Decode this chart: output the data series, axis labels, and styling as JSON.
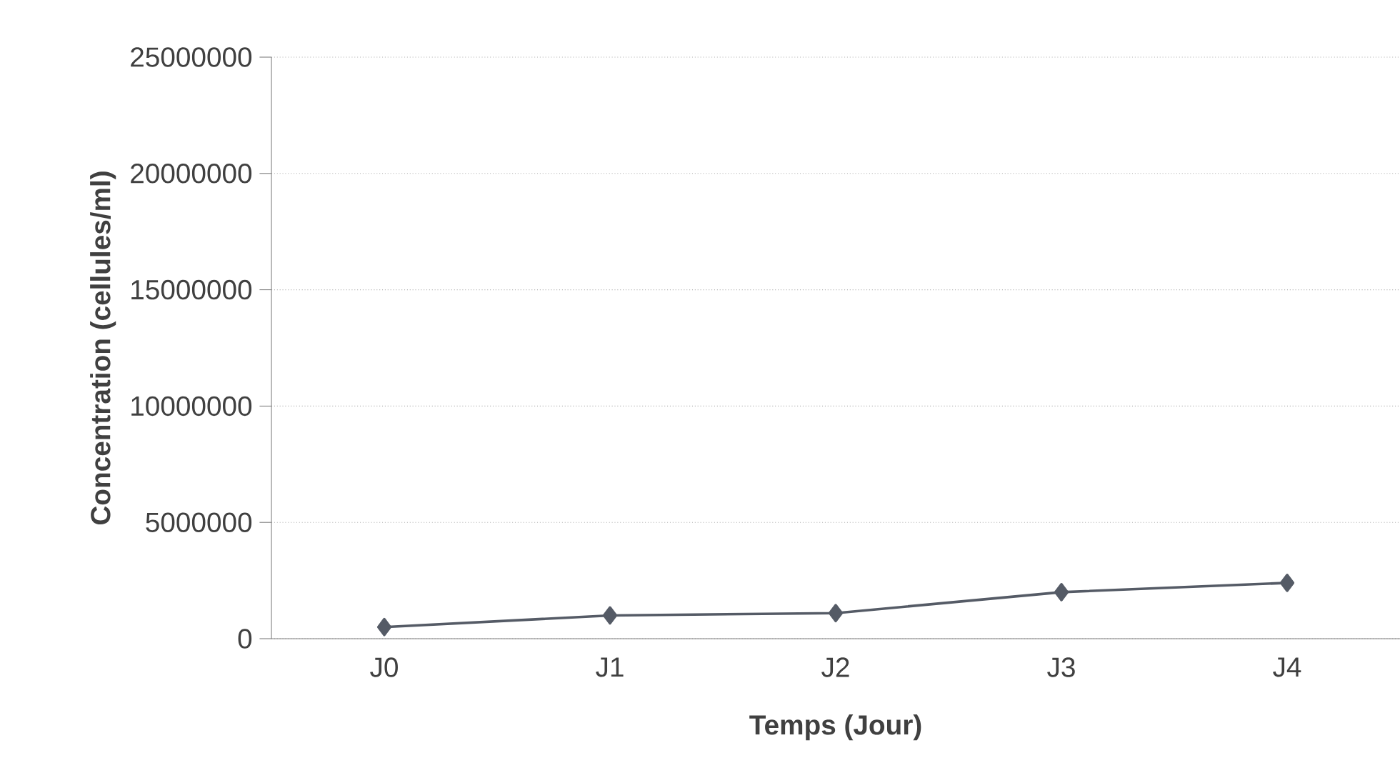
{
  "chart_data": {
    "type": "line",
    "xlabel": "Temps (Jour)",
    "ylabel": "Concentration (cellules/ml)",
    "categories": [
      "J0",
      "J1",
      "J2",
      "J3",
      "J4"
    ],
    "values": [
      500000,
      1000000,
      1100000,
      2000000,
      2400000
    ],
    "color": "#555b66",
    "marker": "diamond",
    "line_style": "solid",
    "ylim": [
      0,
      25000000
    ],
    "yticks": [
      0,
      5000000,
      10000000,
      15000000,
      20000000,
      25000000
    ],
    "grid": "y"
  }
}
